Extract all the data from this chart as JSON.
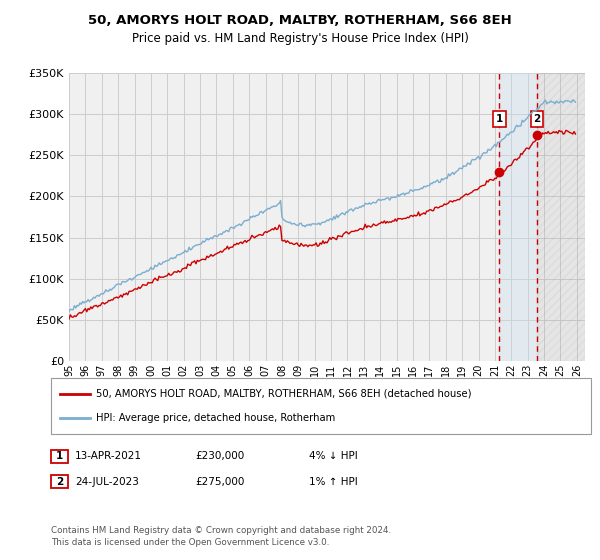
{
  "title": "50, AMORYS HOLT ROAD, MALTBY, ROTHERHAM, S66 8EH",
  "subtitle": "Price paid vs. HM Land Registry's House Price Index (HPI)",
  "legend_line1": "50, AMORYS HOLT ROAD, MALTBY, ROTHERHAM, S66 8EH (detached house)",
  "legend_line2": "HPI: Average price, detached house, Rotherham",
  "annotation1_label": "1",
  "annotation1_date": "13-APR-2021",
  "annotation1_price": "£230,000",
  "annotation1_change": "4% ↓ HPI",
  "annotation2_label": "2",
  "annotation2_date": "24-JUL-2023",
  "annotation2_price": "£275,000",
  "annotation2_change": "1% ↑ HPI",
  "footer": "Contains HM Land Registry data © Crown copyright and database right 2024.\nThis data is licensed under the Open Government Licence v3.0.",
  "sale1_year": 2021.28,
  "sale2_year": 2023.56,
  "sale1_price": 230000,
  "sale2_price": 275000,
  "ylim": [
    0,
    350000
  ],
  "xlim_start": 1995,
  "xlim_end": 2026.5,
  "red_line_color": "#cc0000",
  "blue_line_color": "#7aadcf",
  "grid_color": "#cccccc",
  "bg_color": "#ffffff",
  "plot_bg_color": "#f0f0f0",
  "shade_color": "#c8dff0"
}
